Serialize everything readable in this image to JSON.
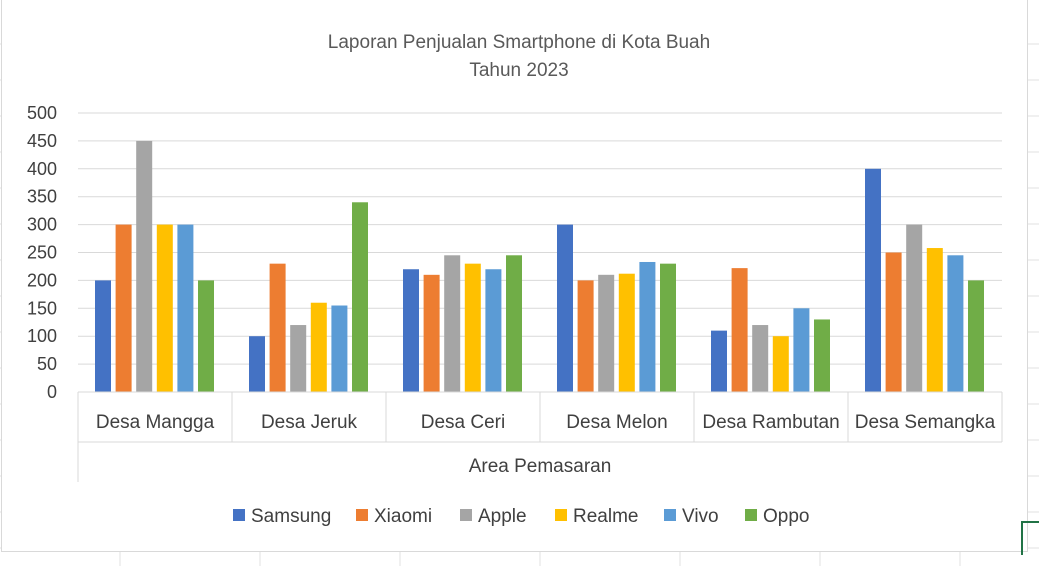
{
  "chart_data": {
    "type": "bar",
    "title": "Laporan Penjualan Smartphone di Kota Buah",
    "subtitle": "Tahun 2023",
    "xlabel": "Area Pemasaran",
    "ylabel": "",
    "ylim": [
      0,
      500
    ],
    "yticks": [
      0,
      50,
      100,
      150,
      200,
      250,
      300,
      350,
      400,
      450,
      500
    ],
    "grid": true,
    "legend_position": "bottom",
    "categories": [
      "Desa Mangga",
      "Desa Jeruk",
      "Desa Ceri",
      "Desa Melon",
      "Desa Rambutan",
      "Desa Semangka"
    ],
    "series": [
      {
        "name": "Samsung",
        "color": "#4472C4",
        "values": [
          200,
          100,
          220,
          300,
          110,
          400
        ]
      },
      {
        "name": "Xiaomi",
        "color": "#ED7D31",
        "values": [
          300,
          230,
          210,
          200,
          222,
          250
        ]
      },
      {
        "name": "Apple",
        "color": "#A5A5A5",
        "values": [
          450,
          120,
          245,
          210,
          120,
          300
        ]
      },
      {
        "name": "Realme",
        "color": "#FFC000",
        "values": [
          300,
          160,
          230,
          212,
          100,
          258
        ]
      },
      {
        "name": "Vivo",
        "color": "#5B9BD5",
        "values": [
          300,
          155,
          220,
          233,
          150,
          245
        ]
      },
      {
        "name": "Oppo",
        "color": "#70AD47",
        "values": [
          200,
          340,
          245,
          230,
          130,
          200
        ]
      }
    ]
  }
}
